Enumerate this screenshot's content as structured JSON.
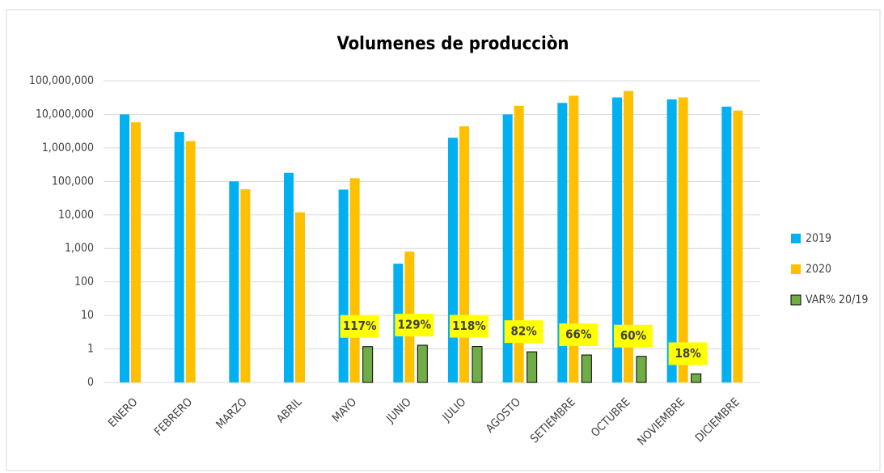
{
  "chart_data": {
    "type": "bar",
    "title": "Volumenes de producciòn",
    "categories": [
      "ENERO",
      "FEBRERO",
      "MARZO",
      "ABRIL",
      "MAYO",
      "JUNIO",
      "JULIO",
      "AGOSTO",
      "SETIEMBRE",
      "OCTUBRE",
      "NOVIEMBRE",
      "DICIEMBRE"
    ],
    "series": [
      {
        "name": "2019",
        "color": "#00b0f0",
        "values": [
          10000000,
          3000000,
          100000,
          180000,
          57000,
          350,
          2000000,
          10000000,
          22000000,
          32000000,
          28000000,
          17000000
        ]
      },
      {
        "name": "2020",
        "color": "#ffc000",
        "values": [
          5800000,
          1600000,
          58000,
          12000,
          125000,
          800,
          4400000,
          18000000,
          36000000,
          50000000,
          32000000,
          13000000
        ]
      },
      {
        "name": "VAR% 20/19",
        "color": "#70ad47",
        "values": [
          null,
          null,
          null,
          null,
          1.17,
          1.29,
          1.18,
          0.82,
          0.66,
          0.6,
          0.18,
          null
        ],
        "value_labels": [
          null,
          null,
          null,
          null,
          "117%",
          "129%",
          "118%",
          "82%",
          "66%",
          "60%",
          "18%",
          null
        ]
      }
    ],
    "ylim": [
      0.1,
      100000000
    ],
    "log_scale": true,
    "grid": true,
    "legend": "right",
    "yticks": [
      {
        "value": 0.1,
        "label": "0"
      },
      1,
      10,
      100,
      {
        "value": 1000,
        "label": "1,000"
      },
      {
        "value": 10000,
        "label": "10,000"
      },
      {
        "value": 100000,
        "label": "100,000"
      },
      {
        "value": 1000000,
        "label": "1,000,000"
      },
      {
        "value": 10000000,
        "label": "10,000,000"
      },
      {
        "value": 100000000,
        "label": "100,000,000"
      }
    ]
  }
}
